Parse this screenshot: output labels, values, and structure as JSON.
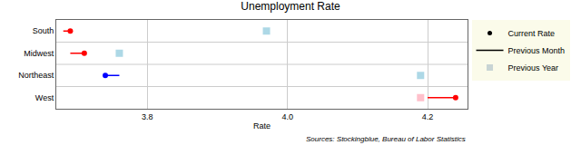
{
  "chart_data": {
    "type": "dot",
    "title": "Unemployment Rate",
    "x_label": "Rate",
    "source": "Sources: Stockingblue, Bureau of Labor Statistics",
    "orientation": "horizontal",
    "categories": [
      "South",
      "Midwest",
      "Northeast",
      "West"
    ],
    "series": [
      {
        "name": "Previous Month",
        "type": "line",
        "line_style": "solid",
        "color": "#000000",
        "colors": [
          "#ff0000",
          "#ff0000",
          "#0000ff",
          "#ff0000"
        ],
        "values": [
          3.68,
          3.69,
          3.76,
          4.2
        ]
      },
      {
        "name": "Previous Year",
        "type": "scatter",
        "marker": "square",
        "color": "#c8d4d4",
        "colors": [
          "#add8e6",
          "#add8e6",
          "#add8e6",
          "#ffc0cb"
        ],
        "values": [
          3.97,
          3.76,
          4.19,
          4.19
        ]
      },
      {
        "name": "Current Rate",
        "type": "scatter",
        "marker": "circle",
        "color": "#000000",
        "colors": [
          "#ff0000",
          "#ff0000",
          "#0000ff",
          "#ff0000"
        ],
        "values": [
          3.69,
          3.71,
          3.74,
          4.24
        ]
      }
    ],
    "xlim": [
      3.67,
      4.257
    ],
    "xticks": [
      3.8,
      {
        "value": 4,
        "label": "4.0"
      },
      4.2
    ],
    "grid": true,
    "legend": "right"
  }
}
